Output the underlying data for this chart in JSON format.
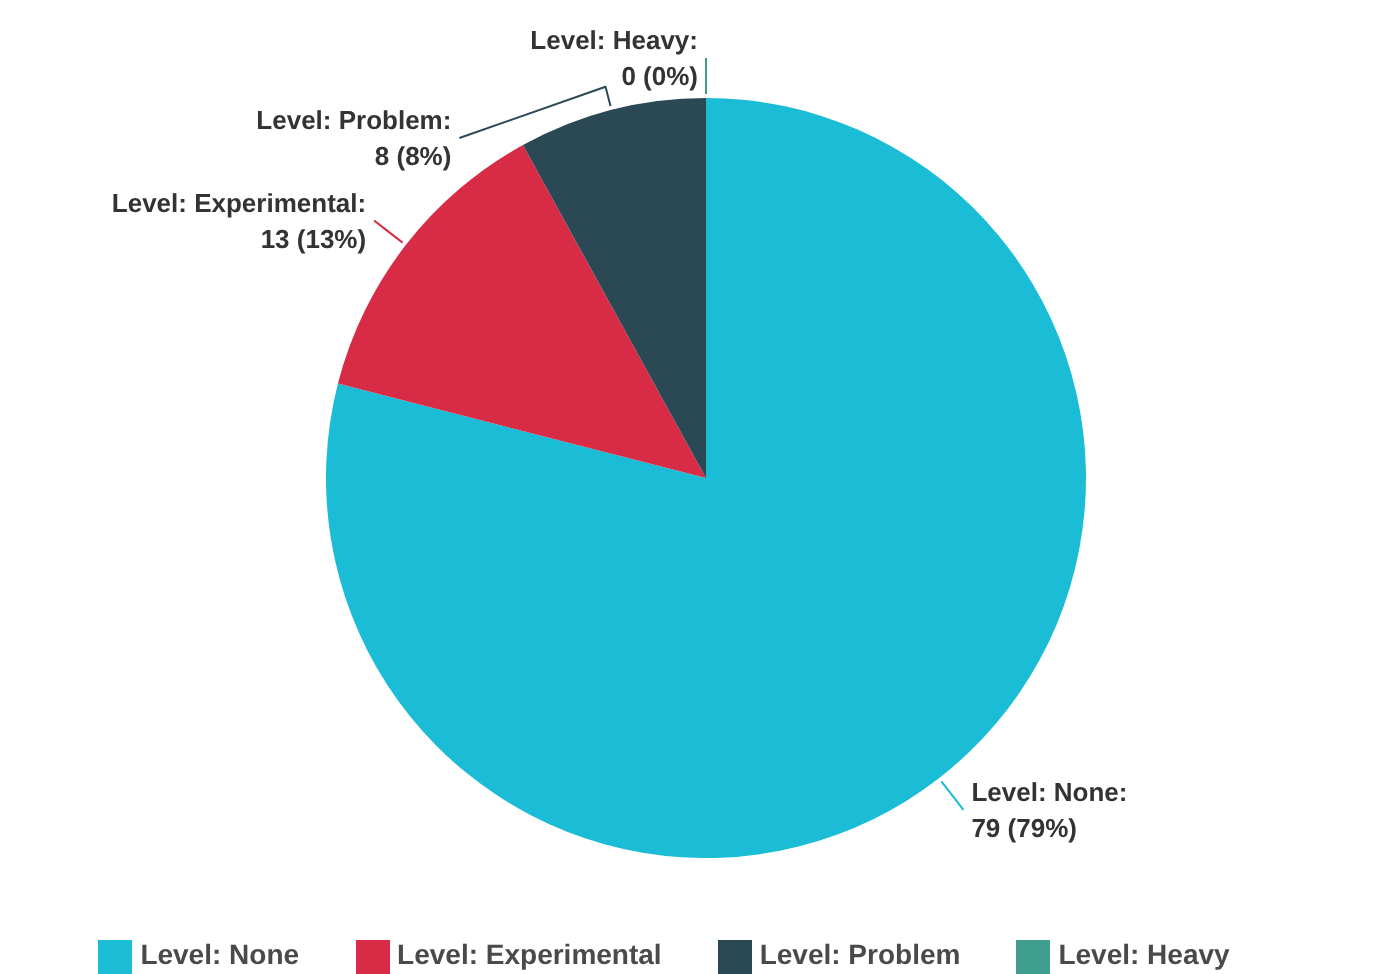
{
  "chart_data": {
    "type": "pie",
    "categories": [
      "Level: None",
      "Level: Experimental",
      "Level: Problem",
      "Level: Heavy"
    ],
    "values": [
      79,
      13,
      8,
      0
    ],
    "colors": [
      "#1bbcd6",
      "#d72b46",
      "#2a4955",
      "#3f9e8e"
    ],
    "value_labels": [
      "Level: None:\n79 (79%)",
      "Level: Experimental:\n13 (13%)",
      "Level: Problem:\n8 (8%)",
      "Level: Heavy:\n0 (0%)"
    ],
    "legend": "bottom"
  }
}
